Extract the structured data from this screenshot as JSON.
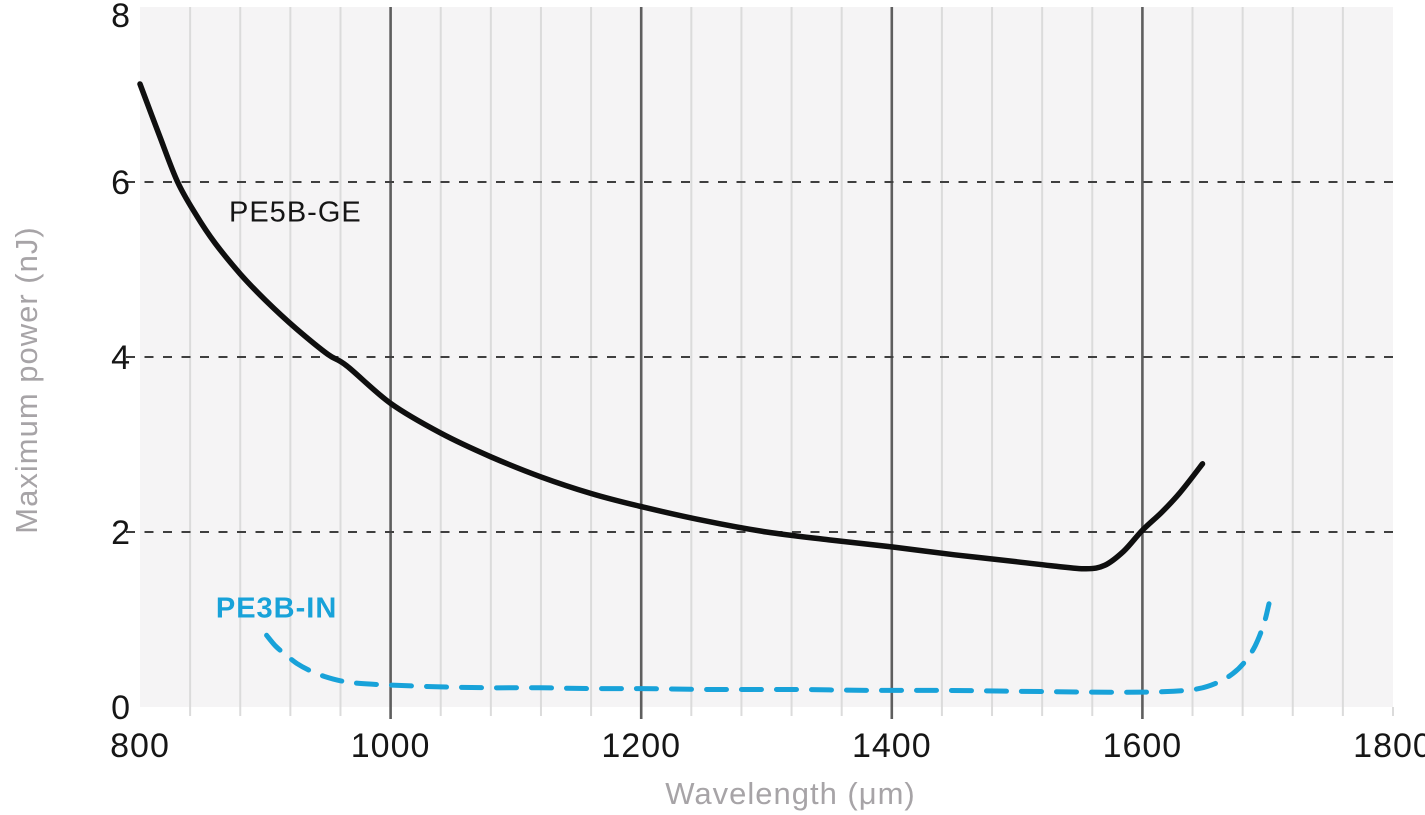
{
  "chart_data": {
    "type": "line",
    "title": "",
    "xlabel": "Wavelength (μm)",
    "ylabel": "Maximum power (nJ)",
    "xlim": [
      800,
      1800
    ],
    "ylim": [
      0,
      8
    ],
    "x_major_ticks": [
      800,
      1000,
      1200,
      1400,
      1600,
      1800
    ],
    "x_major_gridlines": [
      1000,
      1200,
      1400,
      1600
    ],
    "x_minor_step": 40,
    "y_ticks": [
      0,
      2,
      4,
      6,
      8
    ],
    "y_dashed_gridlines": [
      2,
      4,
      6
    ],
    "grid": "minor vertical solid, major vertical dark solid, horizontal dashed",
    "legend_position": "inline-annotations",
    "colors": {
      "plot_bg": "#f5f4f5",
      "grid_minor": "#dbdbdb",
      "grid_major": "#5e5e5e",
      "grid_dashed": "#3f3f3f",
      "tick_text": "#161616",
      "axis_title": "#a7a4a7"
    },
    "series": [
      {
        "name": "PE5B-GE",
        "color": "#0f0f0f",
        "style": "solid",
        "width": 5.5,
        "points": [
          [
            800,
            7.12
          ],
          [
            815,
            6.55
          ],
          [
            830,
            6.0
          ],
          [
            845,
            5.62
          ],
          [
            860,
            5.3
          ],
          [
            880,
            4.95
          ],
          [
            900,
            4.65
          ],
          [
            925,
            4.32
          ],
          [
            950,
            4.03
          ],
          [
            965,
            3.9
          ],
          [
            1000,
            3.47
          ],
          [
            1040,
            3.13
          ],
          [
            1080,
            2.86
          ],
          [
            1120,
            2.63
          ],
          [
            1160,
            2.44
          ],
          [
            1200,
            2.29
          ],
          [
            1250,
            2.13
          ],
          [
            1300,
            2.0
          ],
          [
            1350,
            1.91
          ],
          [
            1400,
            1.83
          ],
          [
            1450,
            1.74
          ],
          [
            1500,
            1.66
          ],
          [
            1530,
            1.61
          ],
          [
            1555,
            1.58
          ],
          [
            1570,
            1.62
          ],
          [
            1585,
            1.78
          ],
          [
            1600,
            2.02
          ],
          [
            1615,
            2.22
          ],
          [
            1630,
            2.45
          ],
          [
            1648,
            2.78
          ]
        ]
      },
      {
        "name": "PE3B-IN",
        "color": "#18a2d9",
        "style": "dashed",
        "width": 5,
        "points": [
          [
            901,
            0.82
          ],
          [
            908,
            0.7
          ],
          [
            916,
            0.6
          ],
          [
            925,
            0.5
          ],
          [
            935,
            0.42
          ],
          [
            947,
            0.35
          ],
          [
            960,
            0.3
          ],
          [
            975,
            0.27
          ],
          [
            1000,
            0.25
          ],
          [
            1040,
            0.23
          ],
          [
            1080,
            0.22
          ],
          [
            1120,
            0.22
          ],
          [
            1160,
            0.21
          ],
          [
            1200,
            0.21
          ],
          [
            1260,
            0.2
          ],
          [
            1320,
            0.2
          ],
          [
            1380,
            0.19
          ],
          [
            1440,
            0.19
          ],
          [
            1500,
            0.18
          ],
          [
            1560,
            0.17
          ],
          [
            1600,
            0.17
          ],
          [
            1625,
            0.18
          ],
          [
            1645,
            0.21
          ],
          [
            1660,
            0.28
          ],
          [
            1672,
            0.38
          ],
          [
            1682,
            0.52
          ],
          [
            1690,
            0.7
          ],
          [
            1697,
            0.95
          ],
          [
            1701,
            1.18
          ]
        ]
      }
    ],
    "annotations": [
      {
        "text": "PE5B-GE",
        "x": 924,
        "y": 5.65,
        "color": "#151515",
        "bold": false
      },
      {
        "text": "PE3B-IN",
        "x": 909,
        "y": 1.12,
        "color": "#18a2d9",
        "bold": true
      }
    ]
  }
}
